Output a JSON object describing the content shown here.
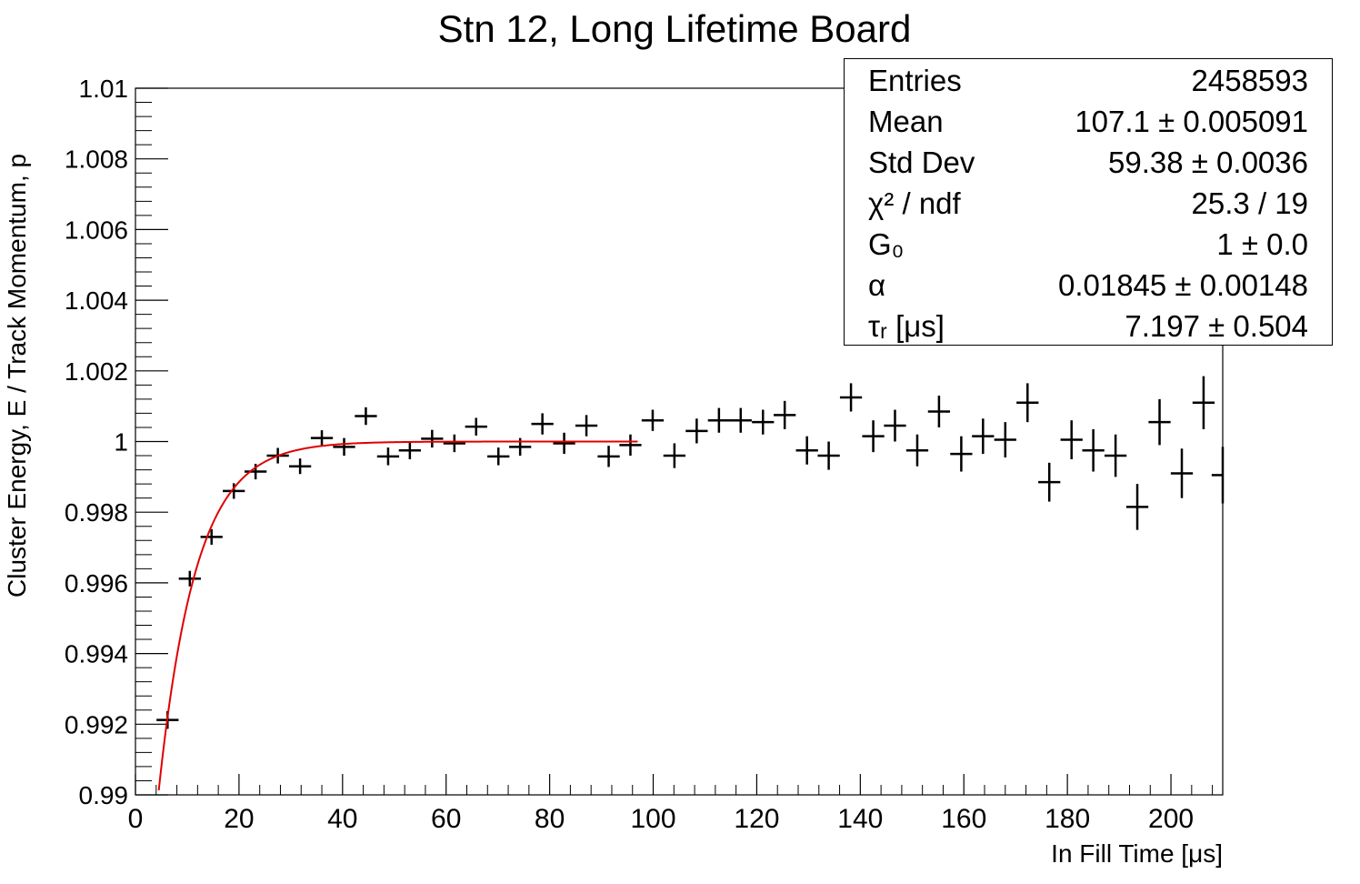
{
  "chart_data": {
    "type": "scatter",
    "title": "Stn 12, Long Lifetime Board",
    "xlabel": "In Fill Time [μs]",
    "ylabel": "Cluster Energy, E / Track Momentum, p",
    "xlim": [
      0,
      210
    ],
    "ylim": [
      0.99,
      1.01
    ],
    "x_ticks": [
      "0",
      "20",
      "40",
      "60",
      "80",
      "100",
      "120",
      "140",
      "160",
      "180",
      "200"
    ],
    "y_ticks": [
      "0.99",
      "0.992",
      "0.994",
      "0.996",
      "0.998",
      "1",
      "1.002",
      "1.004",
      "1.006",
      "1.008",
      "1.01"
    ],
    "grid": false,
    "series": [
      {
        "kind": "points_with_errors",
        "color": "#000000",
        "points": [
          {
            "x": 6.2,
            "y": 0.99212,
            "yerr": 0.00025
          },
          {
            "x": 10.5,
            "y": 0.99612,
            "yerr": 0.00022
          },
          {
            "x": 14.7,
            "y": 0.9973,
            "yerr": 0.00022
          },
          {
            "x": 19.0,
            "y": 0.9986,
            "yerr": 0.00022
          },
          {
            "x": 23.2,
            "y": 0.99915,
            "yerr": 0.00022
          },
          {
            "x": 27.5,
            "y": 0.9996,
            "yerr": 0.00022
          },
          {
            "x": 31.8,
            "y": 0.9993,
            "yerr": 0.00022
          },
          {
            "x": 36.0,
            "y": 1.0001,
            "yerr": 0.00022
          },
          {
            "x": 40.3,
            "y": 0.99985,
            "yerr": 0.00025
          },
          {
            "x": 44.5,
            "y": 1.00072,
            "yerr": 0.00025
          },
          {
            "x": 48.8,
            "y": 0.99958,
            "yerr": 0.00025
          },
          {
            "x": 53.0,
            "y": 0.99975,
            "yerr": 0.00025
          },
          {
            "x": 57.3,
            "y": 1.00008,
            "yerr": 0.00025
          },
          {
            "x": 61.6,
            "y": 0.99995,
            "yerr": 0.00025
          },
          {
            "x": 65.8,
            "y": 1.00042,
            "yerr": 0.00025
          },
          {
            "x": 70.1,
            "y": 0.99958,
            "yerr": 0.00025
          },
          {
            "x": 74.3,
            "y": 0.99985,
            "yerr": 0.00025
          },
          {
            "x": 78.6,
            "y": 1.0005,
            "yerr": 0.0003
          },
          {
            "x": 82.8,
            "y": 0.99995,
            "yerr": 0.0003
          },
          {
            "x": 87.1,
            "y": 1.00045,
            "yerr": 0.0003
          },
          {
            "x": 91.4,
            "y": 0.99958,
            "yerr": 0.0003
          },
          {
            "x": 95.6,
            "y": 0.9999,
            "yerr": 0.0003
          },
          {
            "x": 99.9,
            "y": 1.0006,
            "yerr": 0.0003
          },
          {
            "x": 104.1,
            "y": 0.9996,
            "yerr": 0.00035
          },
          {
            "x": 108.4,
            "y": 1.0003,
            "yerr": 0.00035
          },
          {
            "x": 112.7,
            "y": 1.0006,
            "yerr": 0.00035
          },
          {
            "x": 116.9,
            "y": 1.0006,
            "yerr": 0.00035
          },
          {
            "x": 121.2,
            "y": 1.00055,
            "yerr": 0.00035
          },
          {
            "x": 125.4,
            "y": 1.00075,
            "yerr": 0.0004
          },
          {
            "x": 129.7,
            "y": 0.99975,
            "yerr": 0.0004
          },
          {
            "x": 133.9,
            "y": 0.9996,
            "yerr": 0.0004
          },
          {
            "x": 138.2,
            "y": 1.00125,
            "yerr": 0.0004
          },
          {
            "x": 142.5,
            "y": 1.00015,
            "yerr": 0.00045
          },
          {
            "x": 146.7,
            "y": 1.00045,
            "yerr": 0.00045
          },
          {
            "x": 151.0,
            "y": 0.99975,
            "yerr": 0.00045
          },
          {
            "x": 155.2,
            "y": 1.00085,
            "yerr": 0.00045
          },
          {
            "x": 159.5,
            "y": 0.99965,
            "yerr": 0.0005
          },
          {
            "x": 163.7,
            "y": 1.00015,
            "yerr": 0.0005
          },
          {
            "x": 168.0,
            "y": 1.00005,
            "yerr": 0.0005
          },
          {
            "x": 172.3,
            "y": 1.0011,
            "yerr": 0.00055
          },
          {
            "x": 176.5,
            "y": 0.99885,
            "yerr": 0.00055
          },
          {
            "x": 180.8,
            "y": 1.00005,
            "yerr": 0.00055
          },
          {
            "x": 185.0,
            "y": 0.99975,
            "yerr": 0.0006
          },
          {
            "x": 189.3,
            "y": 0.9996,
            "yerr": 0.0006
          },
          {
            "x": 193.5,
            "y": 0.99815,
            "yerr": 0.00065
          },
          {
            "x": 197.8,
            "y": 1.00055,
            "yerr": 0.00065
          },
          {
            "x": 202.1,
            "y": 0.9991,
            "yerr": 0.0007
          },
          {
            "x": 206.3,
            "y": 1.0011,
            "yerr": 0.00075
          },
          {
            "x": 210.0,
            "y": 0.99905,
            "yerr": 0.0008
          }
        ]
      },
      {
        "kind": "fit_curve",
        "color": "#e00000",
        "formula": "G0*(1 - alpha*exp(-t/tau_r))",
        "params": {
          "G0": 1.0,
          "alpha": 0.01845,
          "tau_r": 7.197
        },
        "x_range": [
          4.5,
          97
        ]
      }
    ]
  },
  "stats_box": {
    "rows": [
      {
        "label": "Entries",
        "value": "2458593"
      },
      {
        "label": "Mean",
        "value": "107.1 ± 0.005091"
      },
      {
        "label": "Std Dev",
        "value": "59.38 ± 0.0036"
      },
      {
        "label": "χ² / ndf",
        "value": "25.3 / 19"
      },
      {
        "label": "G₀",
        "value": "1 ± 0.0"
      },
      {
        "label": "α",
        "value": "0.01845 ± 0.00148"
      },
      {
        "label": "τᵣ [μs]",
        "value": "7.197 ± 0.504"
      }
    ]
  }
}
